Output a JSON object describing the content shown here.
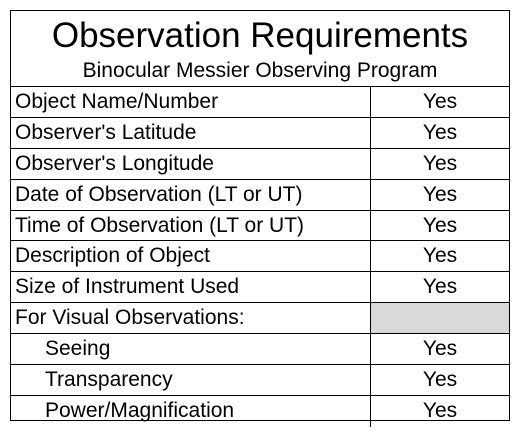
{
  "title": "Observation Requirements",
  "subtitle": "Binocular Messier Observing Program",
  "rows": [
    {
      "label": "Object Name/Number",
      "value": "Yes"
    },
    {
      "label": "Observer's Latitude",
      "value": "Yes"
    },
    {
      "label": "Observer's Longitude",
      "value": "Yes"
    },
    {
      "label": "Date of Observation (LT or UT)",
      "value": "Yes"
    },
    {
      "label": "Time of Observation (LT or UT)",
      "value": "Yes"
    },
    {
      "label": "Description of Object",
      "value": "Yes"
    },
    {
      "label": "Size of Instrument Used",
      "value": "Yes"
    },
    {
      "label": "For Visual Observations:",
      "value": ""
    },
    {
      "label": "Seeing",
      "value": "Yes"
    },
    {
      "label": "Transparency",
      "value": "Yes"
    },
    {
      "label": "Power/Magnification",
      "value": "Yes"
    }
  ],
  "colors": {
    "border": "#000000",
    "shaded_cell": "#d9d9d9",
    "background": "#ffffff"
  }
}
